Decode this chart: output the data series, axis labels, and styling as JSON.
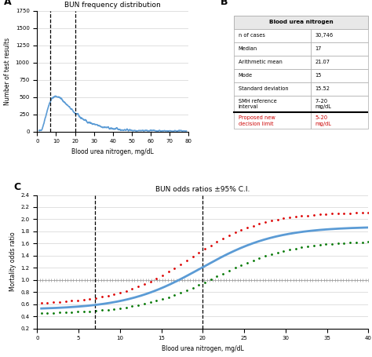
{
  "panel_A": {
    "title": "BUN frequency distribution",
    "xlabel": "Blood urea nitrogen, mg/dL",
    "ylabel": "Number of test results",
    "xlim": [
      0,
      80
    ],
    "ylim": [
      0,
      1750
    ],
    "yticks": [
      0,
      250,
      500,
      750,
      1000,
      1250,
      1500,
      1750
    ],
    "xticks": [
      0,
      10,
      20,
      30,
      40,
      50,
      60,
      70,
      80
    ],
    "vlines": [
      7,
      20
    ],
    "curve_color": "#5b9bd5"
  },
  "panel_B": {
    "header": "Blood urea nitrogen",
    "rows": [
      [
        "n of cases",
        "30,746"
      ],
      [
        "Median",
        "17"
      ],
      [
        "Arithmetic mean",
        "21.07"
      ],
      [
        "Mode",
        "15"
      ],
      [
        "Standard deviation",
        "15.52"
      ],
      [
        "SMH reference\ninterval",
        "7–20\nmg/dL"
      ],
      [
        "Proposed new\ndecision limit",
        "5–20\nmg/dL"
      ]
    ]
  },
  "panel_C": {
    "title": "BUN odds ratios ±95% C.I.",
    "xlabel": "Blood urea nitrogen, mg/dL",
    "ylabel": "Mortality odds ratio",
    "xlim": [
      0,
      40
    ],
    "ylim": [
      0.2,
      2.4
    ],
    "yticks": [
      0.2,
      0.4,
      0.6,
      0.8,
      1.0,
      1.2,
      1.4,
      1.6,
      1.8,
      2.0,
      2.2,
      2.4
    ],
    "xticks": [
      0,
      5,
      10,
      15,
      20,
      25,
      30,
      35,
      40
    ],
    "vlines": [
      7,
      20
    ],
    "line_color": "#5b9bd5",
    "upper_ci_color": "#dd0000",
    "lower_ci_color": "#007700",
    "ref_line_color": "#999999"
  }
}
